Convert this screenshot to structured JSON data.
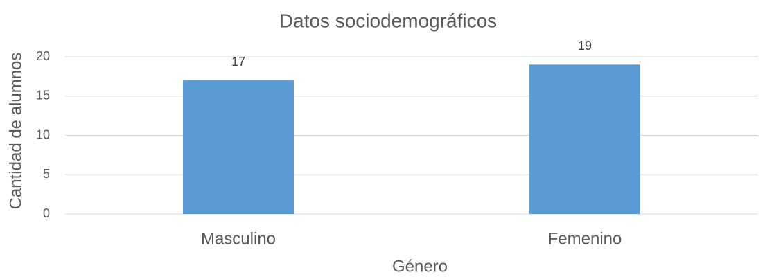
{
  "chart_data": {
    "type": "bar",
    "title": "Datos sociodemográficos",
    "x_label": "Género",
    "y_label": "Cantidad de alumnos",
    "categories": [
      "Masculino",
      "Femenino"
    ],
    "values": [
      17,
      19
    ],
    "color": "#5b9bd5",
    "ylim": [
      0,
      20
    ],
    "yticks": [
      0,
      5,
      10,
      15,
      20
    ],
    "grid": true
  }
}
